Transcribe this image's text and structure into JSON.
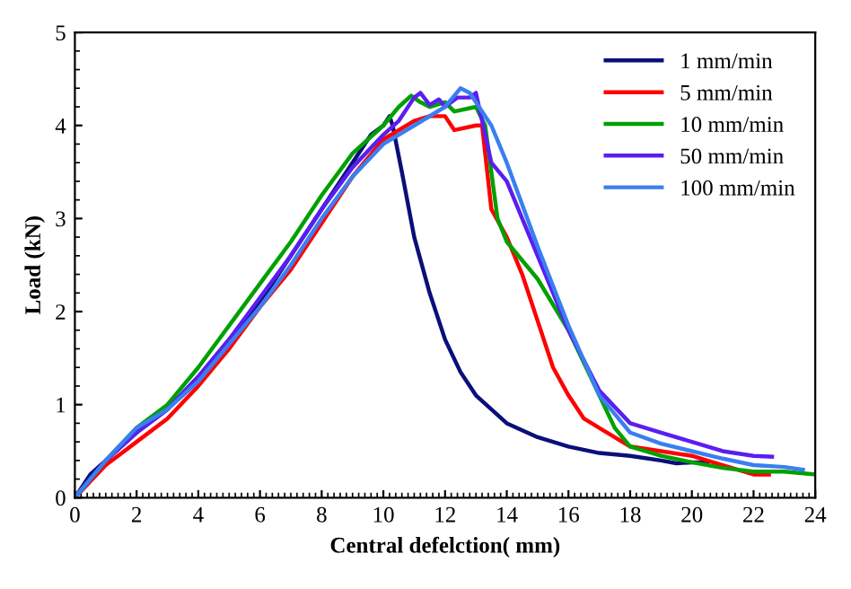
{
  "chart_data": {
    "type": "line",
    "xlabel": "Central defelction( mm)",
    "ylabel": "Load (kN)",
    "xlim": [
      0,
      24
    ],
    "ylim": [
      0,
      5
    ],
    "xticks": [
      0,
      2,
      4,
      6,
      8,
      10,
      12,
      14,
      16,
      18,
      20,
      22,
      24
    ],
    "yticks": [
      0,
      1,
      2,
      3,
      4,
      5
    ],
    "grid": false,
    "legend": "top right",
    "marker": "none",
    "line_style": "solid",
    "series": [
      {
        "name": "1 mm/min",
        "color": "#0a0f7a",
        "x": [
          0,
          0.5,
          1,
          2,
          3,
          4,
          5,
          6,
          7,
          8,
          9,
          9.6,
          10,
          10.2,
          10.3,
          10.6,
          11,
          11.5,
          12,
          12.5,
          13,
          13.5,
          14,
          15,
          16,
          17,
          18,
          19,
          19.5,
          20,
          20.5
        ],
        "values": [
          0,
          0.25,
          0.4,
          0.7,
          0.95,
          1.3,
          1.7,
          2.1,
          2.6,
          3.1,
          3.6,
          3.9,
          4.0,
          4.1,
          4.0,
          3.5,
          2.8,
          2.2,
          1.7,
          1.35,
          1.1,
          0.95,
          0.8,
          0.65,
          0.55,
          0.48,
          0.45,
          0.4,
          0.37,
          0.38,
          0.38
        ]
      },
      {
        "name": "5 mm/min",
        "color": "#ff0000",
        "x": [
          0,
          1,
          2,
          3,
          4,
          5,
          6,
          6.5,
          7,
          8,
          9,
          10,
          11,
          11.5,
          12,
          12.3,
          13,
          13.2,
          13.5,
          14,
          14.5,
          15,
          15.5,
          16,
          16.5,
          17,
          18,
          19,
          20,
          21,
          22,
          22.5
        ],
        "values": [
          0,
          0.35,
          0.6,
          0.85,
          1.2,
          1.6,
          2.05,
          2.25,
          2.45,
          2.95,
          3.45,
          3.85,
          4.05,
          4.1,
          4.1,
          3.95,
          4.0,
          4.0,
          3.1,
          2.8,
          2.4,
          1.9,
          1.4,
          1.1,
          0.85,
          0.75,
          0.55,
          0.5,
          0.45,
          0.35,
          0.25,
          0.25
        ]
      },
      {
        "name": "10 mm/min",
        "color": "#00a000",
        "x": [
          0,
          1,
          2,
          3,
          4,
          5,
          6,
          7,
          8,
          9,
          10,
          10.5,
          10.9,
          11.2,
          11.5,
          12,
          12.3,
          13,
          13.3,
          13.7,
          14,
          15,
          16,
          17,
          17.5,
          18,
          19,
          20,
          21,
          22,
          23,
          24
        ],
        "values": [
          0,
          0.4,
          0.75,
          1.0,
          1.4,
          1.85,
          2.3,
          2.75,
          3.25,
          3.7,
          4.0,
          4.2,
          4.32,
          4.25,
          4.2,
          4.25,
          4.15,
          4.2,
          4.0,
          3.0,
          2.75,
          2.35,
          1.8,
          1.1,
          0.75,
          0.55,
          0.45,
          0.38,
          0.32,
          0.28,
          0.28,
          0.25
        ]
      },
      {
        "name": "50 mm/min",
        "color": "#5a1ef0",
        "x": [
          0,
          1,
          2,
          3,
          4,
          5,
          6,
          7,
          8,
          9,
          10,
          10.5,
          11,
          11.2,
          11.5,
          11.8,
          12,
          12.4,
          12.8,
          13,
          13.5,
          14,
          15,
          16,
          17,
          18,
          19,
          20,
          21,
          22,
          22.6
        ],
        "values": [
          0,
          0.4,
          0.7,
          0.95,
          1.3,
          1.7,
          2.15,
          2.6,
          3.1,
          3.55,
          3.9,
          4.05,
          4.3,
          4.35,
          4.22,
          4.28,
          4.2,
          4.3,
          4.3,
          4.35,
          3.6,
          3.4,
          2.6,
          1.8,
          1.15,
          0.8,
          0.7,
          0.6,
          0.5,
          0.45,
          0.44
        ]
      },
      {
        "name": "100 mm/min",
        "color": "#3a7ff0",
        "x": [
          0,
          1,
          2,
          3,
          4,
          5,
          6,
          7,
          8,
          9,
          10,
          11,
          12,
          12.5,
          12.8,
          13.5,
          14,
          15,
          16,
          17,
          18,
          19,
          20,
          21,
          22,
          23,
          23.6
        ],
        "values": [
          0,
          0.4,
          0.75,
          0.95,
          1.25,
          1.65,
          2.05,
          2.5,
          3.0,
          3.45,
          3.8,
          4.0,
          4.2,
          4.4,
          4.35,
          4.0,
          3.6,
          2.7,
          1.85,
          1.1,
          0.7,
          0.58,
          0.5,
          0.42,
          0.35,
          0.33,
          0.3
        ]
      }
    ]
  }
}
